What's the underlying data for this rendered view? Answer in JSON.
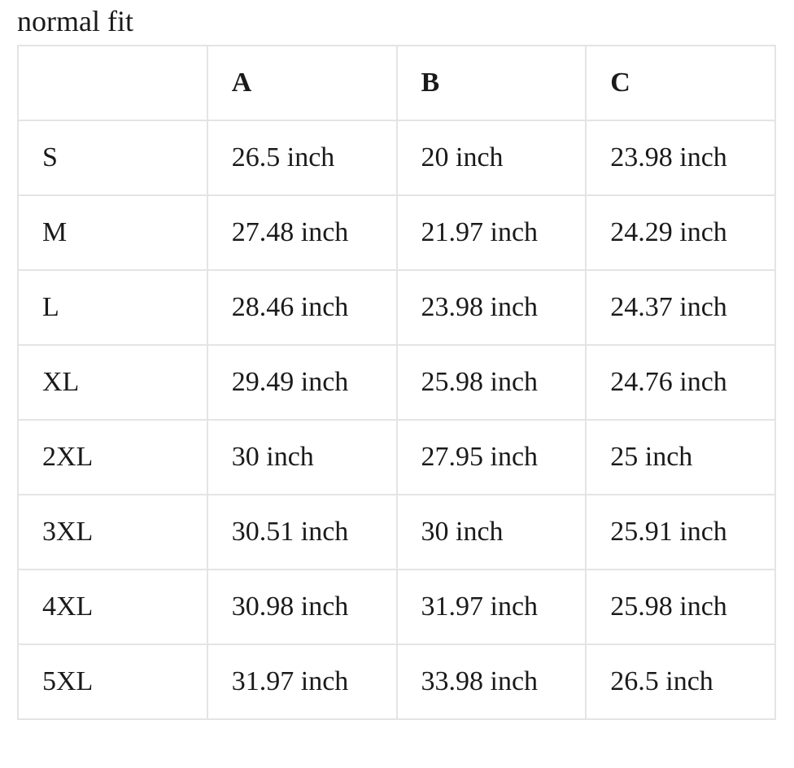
{
  "title": "normal fit",
  "table": {
    "columns": [
      "A",
      "B",
      "C"
    ],
    "rows": [
      [
        "S",
        "26.5 inch",
        "20 inch",
        "23.98 inch"
      ],
      [
        "M",
        "27.48 inch",
        "21.97 inch",
        "24.29 inch"
      ],
      [
        "L",
        "28.46 inch",
        "23.98 inch",
        "24.37 inch"
      ],
      [
        "XL",
        "29.49 inch",
        "25.98 inch",
        "24.76 inch"
      ],
      [
        "2XL",
        "30 inch",
        "27.95 inch",
        "25 inch"
      ],
      [
        "3XL",
        "30.51 inch",
        "30 inch",
        "25.91 inch"
      ],
      [
        "4XL",
        "30.98 inch",
        "31.97 inch",
        "25.98 inch"
      ],
      [
        "5XL",
        "31.97 inch",
        "33.98 inch",
        "26.5 inch"
      ]
    ]
  }
}
